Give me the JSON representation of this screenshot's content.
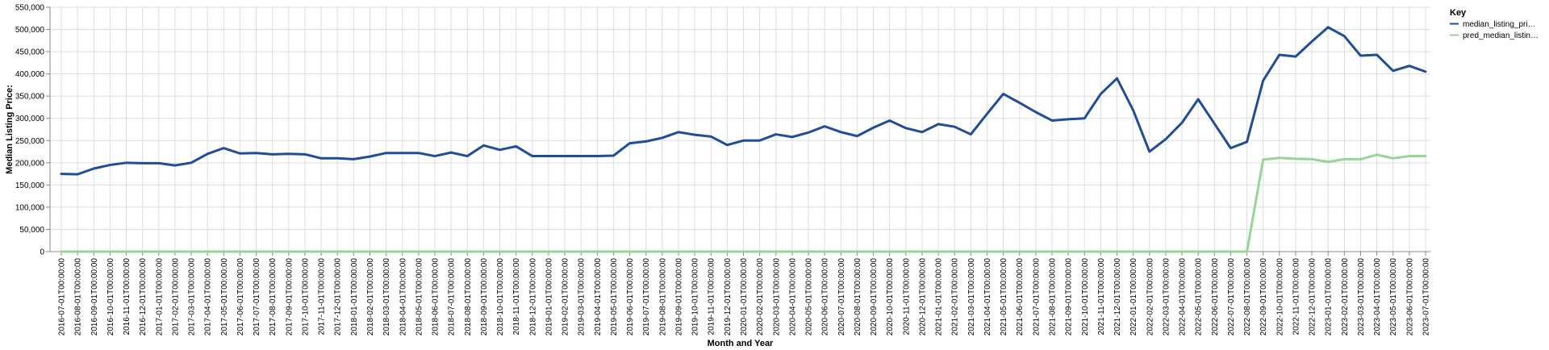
{
  "chart_data": {
    "type": "line",
    "xlabel": "Month and Year",
    "ylabel": "Median Listing Price:",
    "ylim": [
      0,
      550000
    ],
    "y_ticks": [
      0,
      50000,
      100000,
      150000,
      200000,
      250000,
      300000,
      350000,
      400000,
      450000,
      500000,
      550000
    ],
    "y_tick_labels": [
      "0",
      "50,000",
      "100,000",
      "150,000",
      "200,000",
      "250,000",
      "300,000",
      "350,000",
      "400,000",
      "450,000",
      "500,000",
      "550,000"
    ],
    "grid": true,
    "legend": {
      "title": "Key",
      "placement": "top-right"
    },
    "categories": [
      "2016-07-01T00:00:00",
      "2016-08-01T00:00:00",
      "2016-09-01T00:00:00",
      "2016-10-01T00:00:00",
      "2016-11-01T00:00:00",
      "2016-12-01T00:00:00",
      "2017-01-01T00:00:00",
      "2017-02-01T00:00:00",
      "2017-03-01T00:00:00",
      "2017-04-01T00:00:00",
      "2017-05-01T00:00:00",
      "2017-06-01T00:00:00",
      "2017-07-01T00:00:00",
      "2017-08-01T00:00:00",
      "2017-09-01T00:00:00",
      "2017-10-01T00:00:00",
      "2017-11-01T00:00:00",
      "2017-12-01T00:00:00",
      "2018-01-01T00:00:00",
      "2018-02-01T00:00:00",
      "2018-03-01T00:00:00",
      "2018-04-01T00:00:00",
      "2018-05-01T00:00:00",
      "2018-06-01T00:00:00",
      "2018-07-01T00:00:00",
      "2018-08-01T00:00:00",
      "2018-09-01T00:00:00",
      "2018-10-01T00:00:00",
      "2018-11-01T00:00:00",
      "2018-12-01T00:00:00",
      "2019-01-01T00:00:00",
      "2019-02-01T00:00:00",
      "2019-03-01T00:00:00",
      "2019-04-01T00:00:00",
      "2019-05-01T00:00:00",
      "2019-06-01T00:00:00",
      "2019-07-01T00:00:00",
      "2019-08-01T00:00:00",
      "2019-09-01T00:00:00",
      "2019-10-01T00:00:00",
      "2019-11-01T00:00:00",
      "2019-12-01T00:00:00",
      "2020-01-01T00:00:00",
      "2020-02-01T00:00:00",
      "2020-03-01T00:00:00",
      "2020-04-01T00:00:00",
      "2020-05-01T00:00:00",
      "2020-06-01T00:00:00",
      "2020-07-01T00:00:00",
      "2020-08-01T00:00:00",
      "2020-09-01T00:00:00",
      "2020-10-01T00:00:00",
      "2020-11-01T00:00:00",
      "2020-12-01T00:00:00",
      "2021-01-01T00:00:00",
      "2021-02-01T00:00:00",
      "2021-03-01T00:00:00",
      "2021-04-01T00:00:00",
      "2021-05-01T00:00:00",
      "2021-06-01T00:00:00",
      "2021-07-01T00:00:00",
      "2021-08-01T00:00:00",
      "2021-09-01T00:00:00",
      "2021-10-01T00:00:00",
      "2021-11-01T00:00:00",
      "2021-12-01T00:00:00",
      "2022-01-01T00:00:00",
      "2022-02-01T00:00:00",
      "2022-03-01T00:00:00",
      "2022-04-01T00:00:00",
      "2022-05-01T00:00:00",
      "2022-06-01T00:00:00",
      "2022-07-01T00:00:00",
      "2022-08-01T00:00:00",
      "2022-09-01T00:00:00",
      "2022-10-01T00:00:00",
      "2022-11-01T00:00:00",
      "2022-12-01T00:00:00",
      "2023-01-01T00:00:00",
      "2023-02-01T00:00:00",
      "2023-03-01T00:00:00",
      "2023-04-01T00:00:00",
      "2023-05-01T00:00:00",
      "2023-06-01T00:00:00",
      "2023-07-01T00:00:00"
    ],
    "series": [
      {
        "name": "median_listing_pri…",
        "color": "#1f4e96",
        "values": [
          175000,
          174000,
          187000,
          195000,
          200000,
          199000,
          199000,
          194000,
          200000,
          220000,
          233000,
          221000,
          222000,
          219000,
          220000,
          219000,
          210000,
          210000,
          208000,
          214000,
          222000,
          222000,
          222000,
          215000,
          223000,
          215000,
          239000,
          229000,
          237000,
          215000,
          215000,
          215000,
          215000,
          215000,
          216000,
          244000,
          248000,
          256000,
          269000,
          263000,
          259000,
          240000,
          250000,
          250000,
          264000,
          258000,
          268000,
          282000,
          269000,
          260000,
          279000,
          295000,
          278000,
          269000,
          287000,
          281000,
          264000,
          310000,
          355000,
          335000,
          314000,
          295000,
          298000,
          300000,
          355000,
          390000,
          318000,
          225000,
          253000,
          290000,
          343000,
          288000,
          233000,
          247000,
          385000,
          443000,
          439000,
          473000,
          505000,
          485000,
          441000,
          443000,
          407000,
          418000,
          405000
        ]
      },
      {
        "name": "pred_median_listin…",
        "color": "#98d594",
        "values": [
          0,
          0,
          0,
          0,
          0,
          0,
          0,
          0,
          0,
          0,
          0,
          0,
          0,
          0,
          0,
          0,
          0,
          0,
          0,
          0,
          0,
          0,
          0,
          0,
          0,
          0,
          0,
          0,
          0,
          0,
          0,
          0,
          0,
          0,
          0,
          0,
          0,
          0,
          0,
          0,
          0,
          0,
          0,
          0,
          0,
          0,
          0,
          0,
          0,
          0,
          0,
          0,
          0,
          0,
          0,
          0,
          0,
          0,
          0,
          0,
          0,
          0,
          0,
          0,
          0,
          0,
          0,
          0,
          0,
          0,
          0,
          0,
          0,
          0,
          207000,
          211000,
          209000,
          208000,
          202000,
          208000,
          208000,
          218000,
          210000,
          215000,
          215000
        ]
      }
    ]
  }
}
